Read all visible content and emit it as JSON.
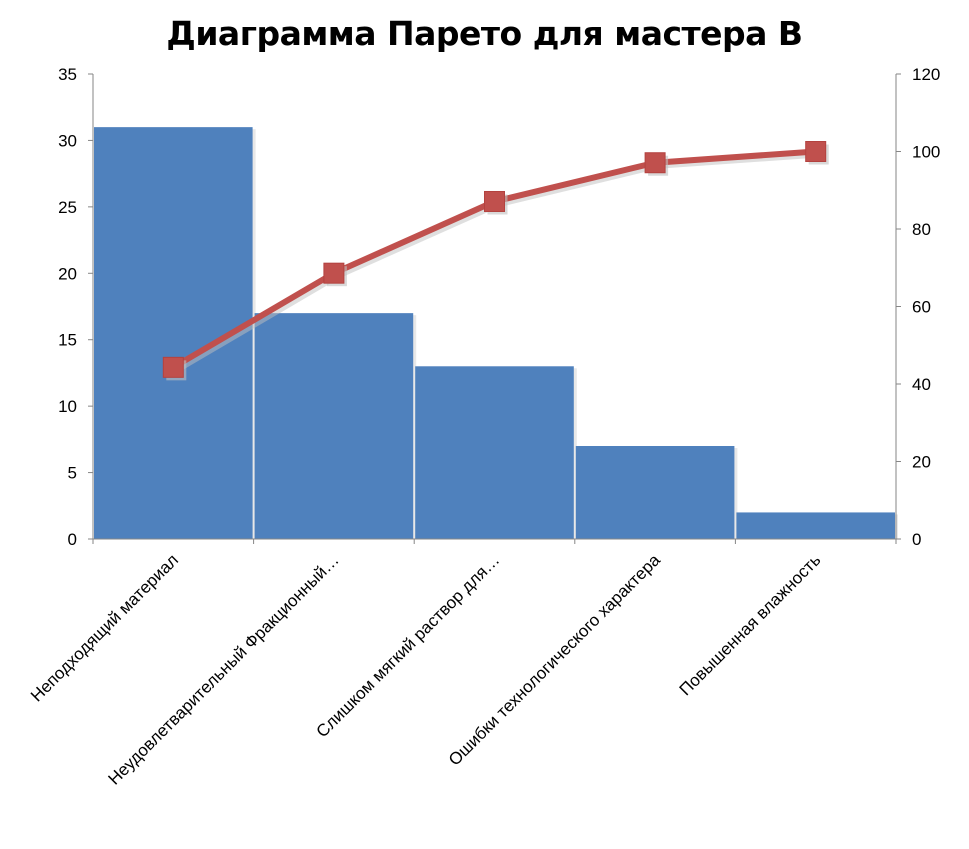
{
  "chart_data": {
    "type": "bar",
    "title": "Диаграмма Парето для мастера В",
    "categories": [
      "Неподходящий материал",
      "Неудовлетварительный Фракционный…",
      "Слишком мягкий раствор для…",
      "Ошибки технологического характера",
      "Повышенная влажность"
    ],
    "series": [
      {
        "type": "bar",
        "axis": "left",
        "color": "#4F81BD",
        "values": [
          31,
          17,
          13,
          7,
          2
        ]
      },
      {
        "type": "line",
        "axis": "right",
        "color": "#C0504D",
        "marker": "square",
        "values": [
          44.3,
          68.6,
          87.1,
          97.1,
          100
        ]
      }
    ],
    "ylim_left": [
      0,
      35
    ],
    "yticks_left": [
      0,
      5,
      10,
      15,
      20,
      25,
      30,
      35
    ],
    "ylim_right": [
      0,
      120
    ],
    "yticks_right": [
      0,
      20,
      40,
      60,
      80,
      100,
      120
    ],
    "grid": false,
    "legend": "none"
  }
}
